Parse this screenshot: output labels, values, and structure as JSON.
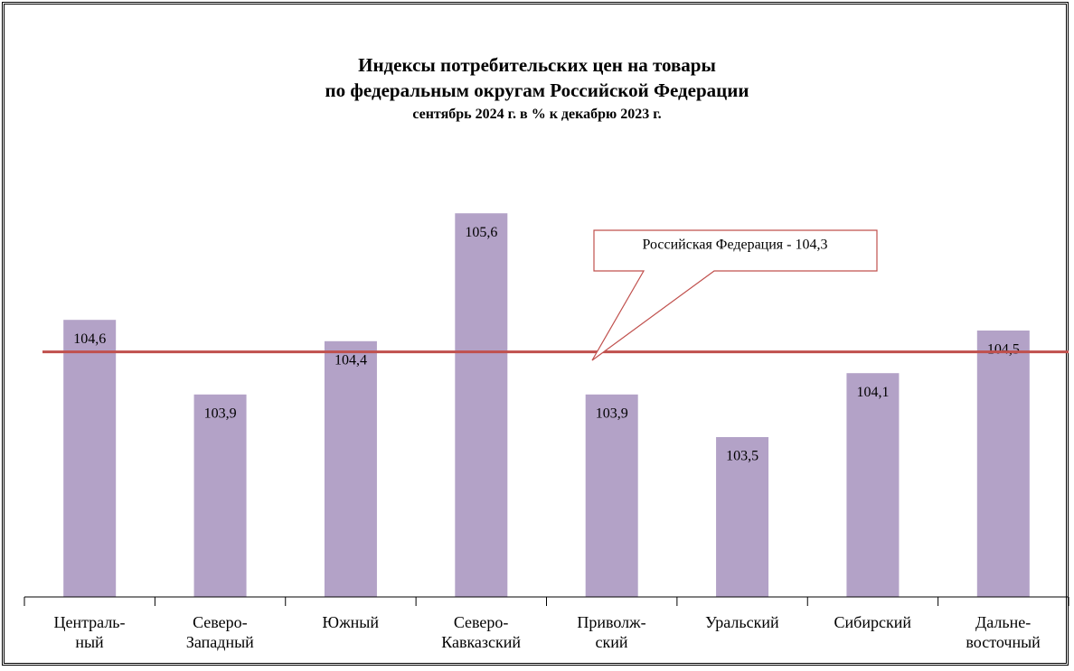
{
  "chart_data": {
    "type": "bar",
    "title": "Индексы потребительских цен на товары\nпо федеральным округам Российской Федерации",
    "subtitle": "сентябрь 2024 г. в % к декабрю 2023 г.",
    "categories": [
      "Централь-\nный",
      "Северо-\nЗападный",
      "Южный",
      "Северо-\nКавказский",
      "Приволж-\nский",
      "Уральский",
      "Сибирский",
      "Дальне-\nвосточный"
    ],
    "values": [
      104.6,
      103.9,
      104.4,
      105.6,
      103.9,
      103.5,
      104.1,
      104.5
    ],
    "value_labels": [
      "104,6",
      "103,9",
      "104,4",
      "105,6",
      "103,9",
      "103,5",
      "104,1",
      "104,5"
    ],
    "color": "#b3a2c7",
    "ylim": [
      102,
      106
    ],
    "reference_line": {
      "value": 104.3,
      "label": "Российская Федерация - 104,3",
      "color": "#c0504d"
    }
  }
}
